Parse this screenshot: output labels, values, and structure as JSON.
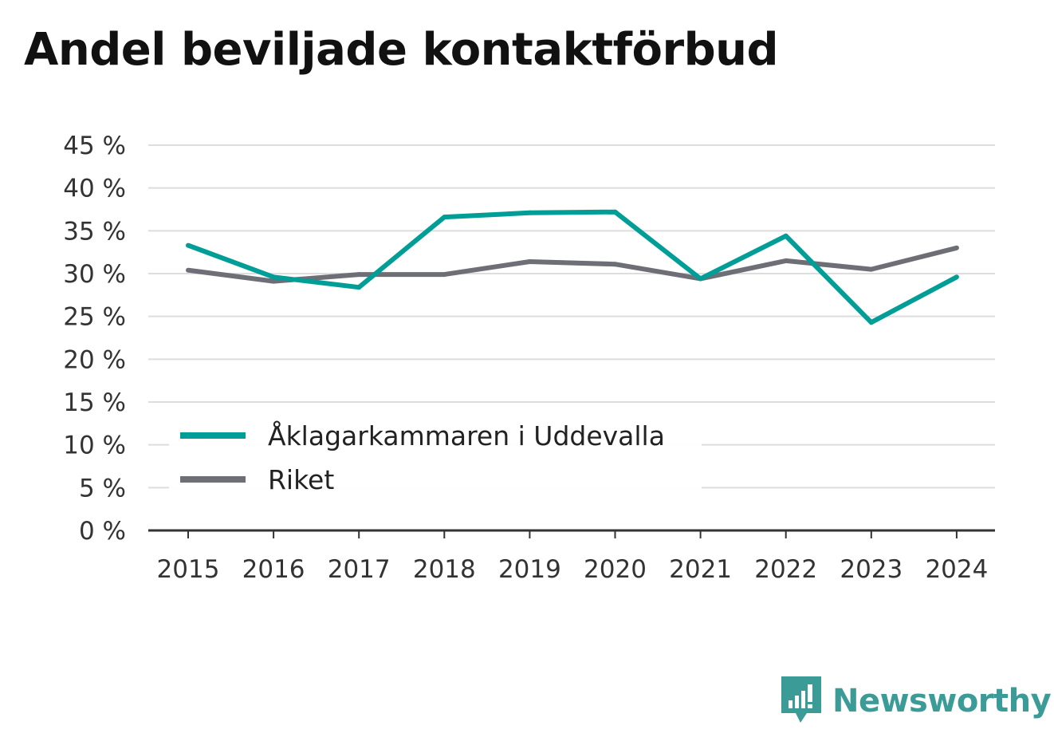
{
  "title": "Andel beviljade kontaktförbud",
  "brand": {
    "name": "Newsworthy",
    "icon": "newsworthy-logo-icon",
    "color": "#3b9b97"
  },
  "chart_data": {
    "type": "line",
    "title": "Andel beviljade kontaktförbud",
    "xlabel": "",
    "ylabel": "",
    "x": [
      "2015",
      "2016",
      "2017",
      "2018",
      "2019",
      "2020",
      "2021",
      "2022",
      "2023",
      "2024"
    ],
    "y_ticks": [
      "0 %",
      "5 %",
      "10 %",
      "15 %",
      "20 %",
      "25 %",
      "30 %",
      "35 %",
      "40 %",
      "45 %"
    ],
    "ylim": [
      0,
      45
    ],
    "grid": true,
    "legend_position": "bottom-left",
    "series": [
      {
        "name": "Åklagarkammaren i Uddevalla",
        "color": "#009e96",
        "values": [
          33.3,
          29.6,
          28.4,
          36.6,
          37.1,
          37.2,
          29.4,
          34.4,
          24.3,
          29.6
        ]
      },
      {
        "name": "Riket",
        "color": "#6e6e76",
        "values": [
          30.4,
          29.1,
          29.9,
          29.9,
          31.4,
          31.1,
          29.4,
          31.5,
          30.5,
          33.0
        ]
      }
    ]
  }
}
